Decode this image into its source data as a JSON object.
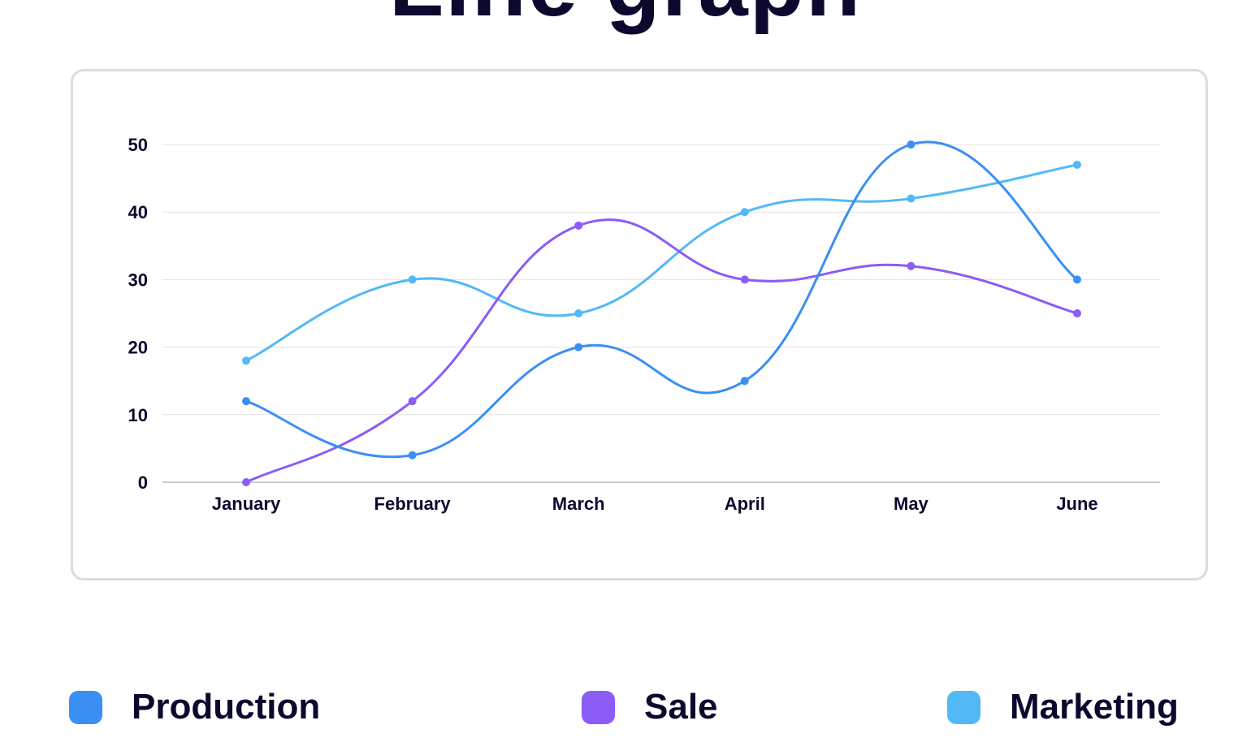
{
  "header": {
    "title": "Line graph"
  },
  "chart_data": {
    "type": "line",
    "categories": [
      "January",
      "February",
      "March",
      "April",
      "May",
      "June"
    ],
    "series": [
      {
        "name": "Production",
        "color": "#3b8ff2",
        "values": [
          12,
          4,
          20,
          15,
          50,
          30
        ]
      },
      {
        "name": "Sale",
        "color": "#8b5cf6",
        "values": [
          0,
          12,
          38,
          30,
          32,
          25
        ]
      },
      {
        "name": "Marketing",
        "color": "#52b9f5",
        "values": [
          18,
          30,
          25,
          40,
          42,
          47
        ]
      }
    ],
    "yticks": [
      0,
      10,
      20,
      30,
      40,
      50
    ],
    "ylim": [
      0,
      50
    ],
    "grid": true,
    "smooth": true,
    "legend_position": "bottom"
  }
}
